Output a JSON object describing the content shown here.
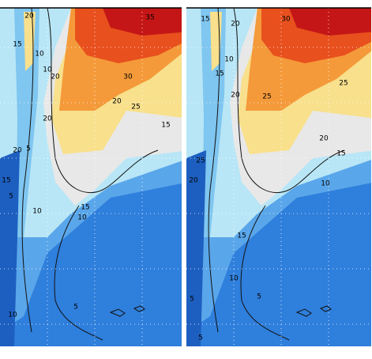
{
  "panels": [
    {
      "contour_labels": [
        "20",
        "15",
        "10",
        "10",
        "20",
        "35",
        "30",
        "20",
        "25",
        "20",
        "15",
        "20",
        "5",
        "15",
        "5",
        "10",
        "15",
        "10",
        "5",
        "10"
      ]
    },
    {
      "contour_labels": [
        "15",
        "20",
        "30",
        "10",
        "15",
        "20",
        "25",
        "25",
        "20",
        "15",
        "25",
        "20",
        "10",
        "15",
        "10",
        "5",
        "5",
        "5"
      ]
    }
  ]
}
